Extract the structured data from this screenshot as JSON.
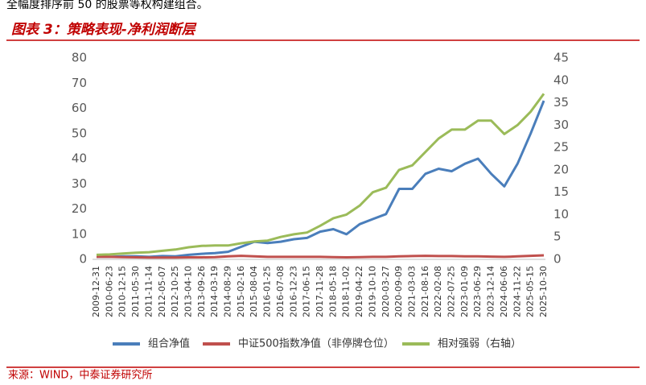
{
  "header_text": "全幅度排序前 50 的股票等权构建组合。",
  "chart_data": {
    "type": "line",
    "title": "图表 3：策略表现-净利润断层",
    "categories": [
      "2009-12-31",
      "2010-06-23",
      "2010-12-15",
      "2011-05-30",
      "2011-11-14",
      "2012-05-07",
      "2012-10-25",
      "2013-04-10",
      "2013-09-26",
      "2014-03-19",
      "2014-08-29",
      "2015-02-16",
      "2015-08-04",
      "2016-01-25",
      "2016-07-08",
      "2016-12-23",
      "2017-06-15",
      "2017-11-28",
      "2018-05-18",
      "2018-11-02",
      "2019-04-22",
      "2019-10-10",
      "2020-03-27",
      "2020-09-09",
      "2021-03-03",
      "2021-08-16",
      "2022-02-08",
      "2022-07-25",
      "2023-01-09",
      "2023-06-29",
      "2023-12-14",
      "2024-06-06",
      "2024-11-22",
      "2025-05-15",
      "2025-10-30"
    ],
    "series": [
      {
        "name": "组合净值",
        "color": "#4a7ebb",
        "values": [
          1,
          1,
          1.2,
          1.2,
          1,
          1.3,
          1.2,
          1.8,
          2.2,
          2.5,
          3,
          5,
          7,
          6.5,
          7,
          8,
          8.5,
          11,
          12,
          10,
          14,
          16,
          18,
          28,
          28,
          34,
          36,
          35,
          38,
          40,
          34,
          29,
          38,
          50,
          63
        ]
      },
      {
        "name": "中证500指数净值（非停牌仓位）",
        "color": "#c0504d",
        "values": [
          1,
          1,
          0.9,
          0.8,
          0.7,
          0.7,
          0.7,
          0.8,
          0.8,
          0.9,
          1.2,
          1.4,
          1.2,
          1,
          1,
          1,
          1,
          1,
          0.9,
          0.8,
          0.9,
          1,
          1,
          1.2,
          1.3,
          1.4,
          1.3,
          1.3,
          1.2,
          1.2,
          1.1,
          1,
          1.2,
          1.4,
          1.6
        ]
      },
      {
        "name": "相对强弱（右轴）",
        "color": "#9bbb59",
        "axis": "y2",
        "values": [
          1,
          1.1,
          1.3,
          1.5,
          1.6,
          1.9,
          2.2,
          2.7,
          3,
          3.1,
          3.1,
          3.6,
          4,
          4.2,
          5,
          5.6,
          6,
          7.5,
          9.2,
          10,
          12,
          15,
          16,
          20,
          21,
          24,
          27,
          29,
          29,
          31,
          31,
          28,
          30,
          33,
          37
        ]
      }
    ],
    "ylim": [
      0,
      80
    ],
    "yticks": [
      0,
      10,
      20,
      30,
      40,
      50,
      60,
      70,
      80
    ],
    "y2lim": [
      0,
      45
    ],
    "y2ticks": [
      0,
      5,
      10,
      15,
      20,
      25,
      30,
      35,
      40,
      45
    ],
    "grid": false,
    "source": "来源：WIND，中泰证券研究所"
  }
}
